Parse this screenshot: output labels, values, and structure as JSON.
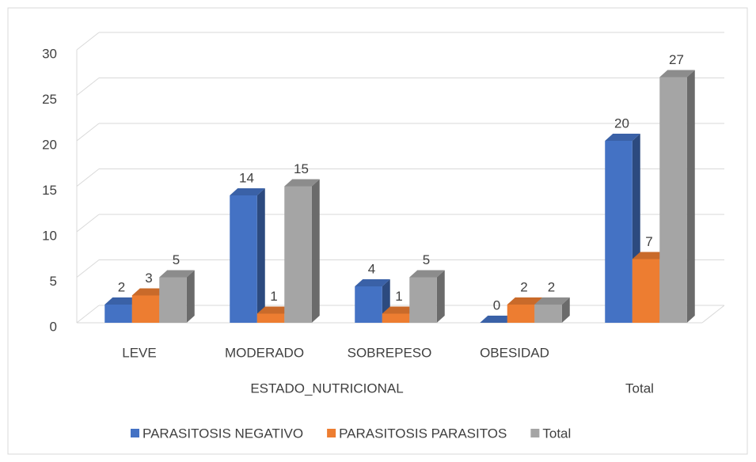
{
  "chart_data": {
    "type": "bar3d",
    "categories": [
      "LEVE",
      "MODERADO",
      "SOBREPESO",
      "OBESIDAD",
      null
    ],
    "category_groups": [
      "ESTADO_NUTRICIONAL",
      "ESTADO_NUTRICIONAL",
      "ESTADO_NUTRICIONAL",
      "ESTADO_NUTRICIONAL",
      "Total"
    ],
    "series": [
      {
        "name": "PARASITOSIS NEGATIVO",
        "color": "#4472c4",
        "values": [
          2,
          14,
          4,
          0,
          20
        ]
      },
      {
        "name": "PARASITOSIS PARASITOS",
        "color": "#ed7d31",
        "values": [
          3,
          1,
          1,
          2,
          7
        ]
      },
      {
        "name": "Total",
        "color": "#a5a5a5",
        "values": [
          5,
          15,
          5,
          2,
          27
        ]
      }
    ],
    "ylim": [
      0,
      30
    ],
    "yticks": [
      0,
      5,
      10,
      15,
      20,
      25,
      30
    ],
    "grid": true,
    "legend": "bottom"
  }
}
